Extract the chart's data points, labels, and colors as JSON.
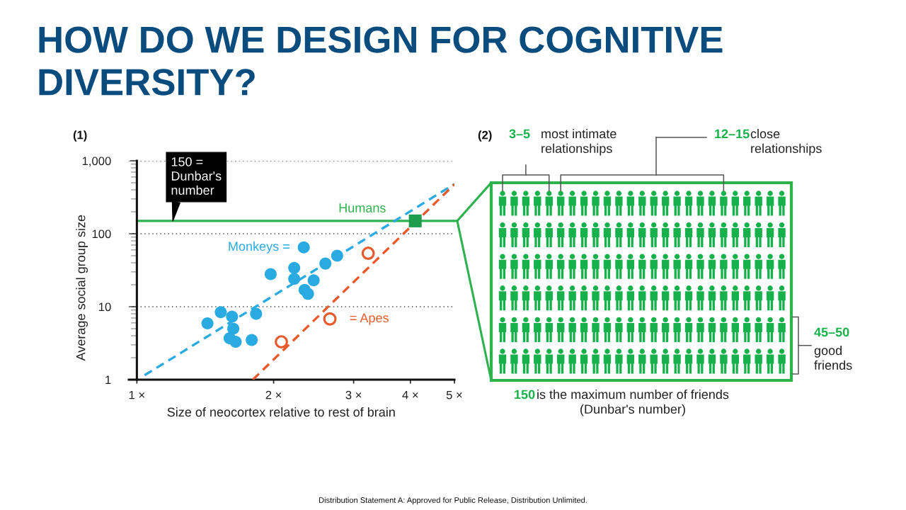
{
  "chart_data": [
    {
      "type": "scatter",
      "title": "HOW DO WE DESIGN FOR COGNITIVE DIVERSITY?",
      "subtitle": "(1)",
      "xlabel": "Size of neocortex relative to rest of brain",
      "ylabel": "Average social group size",
      "log": "xy",
      "xlim": [
        0.96,
        5
      ],
      "ylim": [
        1,
        1000
      ],
      "xticks": [
        {
          "value": 1,
          "label": "1 ×"
        },
        {
          "value": 2,
          "label": "2 ×"
        },
        {
          "value": 3,
          "label": "3 ×"
        },
        {
          "value": 4,
          "label": "4 ×"
        },
        {
          "value": 5,
          "label": "5 ×"
        }
      ],
      "yticks": [
        1,
        10,
        100,
        {
          "value": 1000,
          "label": "1,000"
        }
      ],
      "grid": "y",
      "series": [
        {
          "name": "Monkeys =",
          "type": "scatter",
          "marker": "circle",
          "color": "#29abe2",
          "x": [
            2.33,
            2.76,
            2.6,
            2.22,
            1.97,
            2.22,
            2.45,
            2.34,
            2.38,
            1.53,
            1.62,
            1.83,
            1.43,
            1.63,
            1.6,
            1.65,
            1.79
          ],
          "values": [
            65,
            50,
            39,
            34,
            28,
            24,
            23,
            17,
            15,
            8.4,
            7.3,
            8.0,
            5.9,
            5.0,
            3.7,
            3.3,
            3.5
          ]
        },
        {
          "name": "= Apes",
          "type": "scatter",
          "marker": "circle",
          "color": "#e85a2b",
          "x": [
            2.08,
            2.66,
            3.23
          ],
          "values": [
            3.3,
            6.8,
            54
          ]
        },
        {
          "type": "scatter",
          "marker": "square",
          "color": "#1e9e4b",
          "x": [
            4.1
          ],
          "values": [
            150
          ]
        },
        {
          "type": "line",
          "marker": "none",
          "line_style": "dashed",
          "color": "#29abe2",
          "x": [
            1.04,
            5
          ],
          "values": [
            1.15,
            480
          ]
        },
        {
          "type": "line",
          "marker": "none",
          "line_style": "dashed",
          "color": "#e85a2b",
          "x": [
            1.8,
            5
          ],
          "values": [
            1,
            475
          ]
        }
      ],
      "ref_lines": [
        {
          "axis": "y",
          "value": 150,
          "label": "Humans",
          "color": "#2eb14f",
          "line_style": "solid"
        }
      ],
      "annotations": [
        {
          "text": "150 =\nDunbar's\nnumber",
          "x": 1.2,
          "y": 150
        },
        "Distribution Statement A: Approved for Public Release, Distribution Unlimited."
      ]
    },
    {
      "type": "other",
      "title": "(2)",
      "annotations": [
        "3–5",
        "most intimate\nrelationships",
        "12–15",
        "close\nrelationships",
        "45–50",
        "good\nfriends",
        "150",
        "is the maximum number of friends\n(Dunbar's number)"
      ]
    }
  ]
}
